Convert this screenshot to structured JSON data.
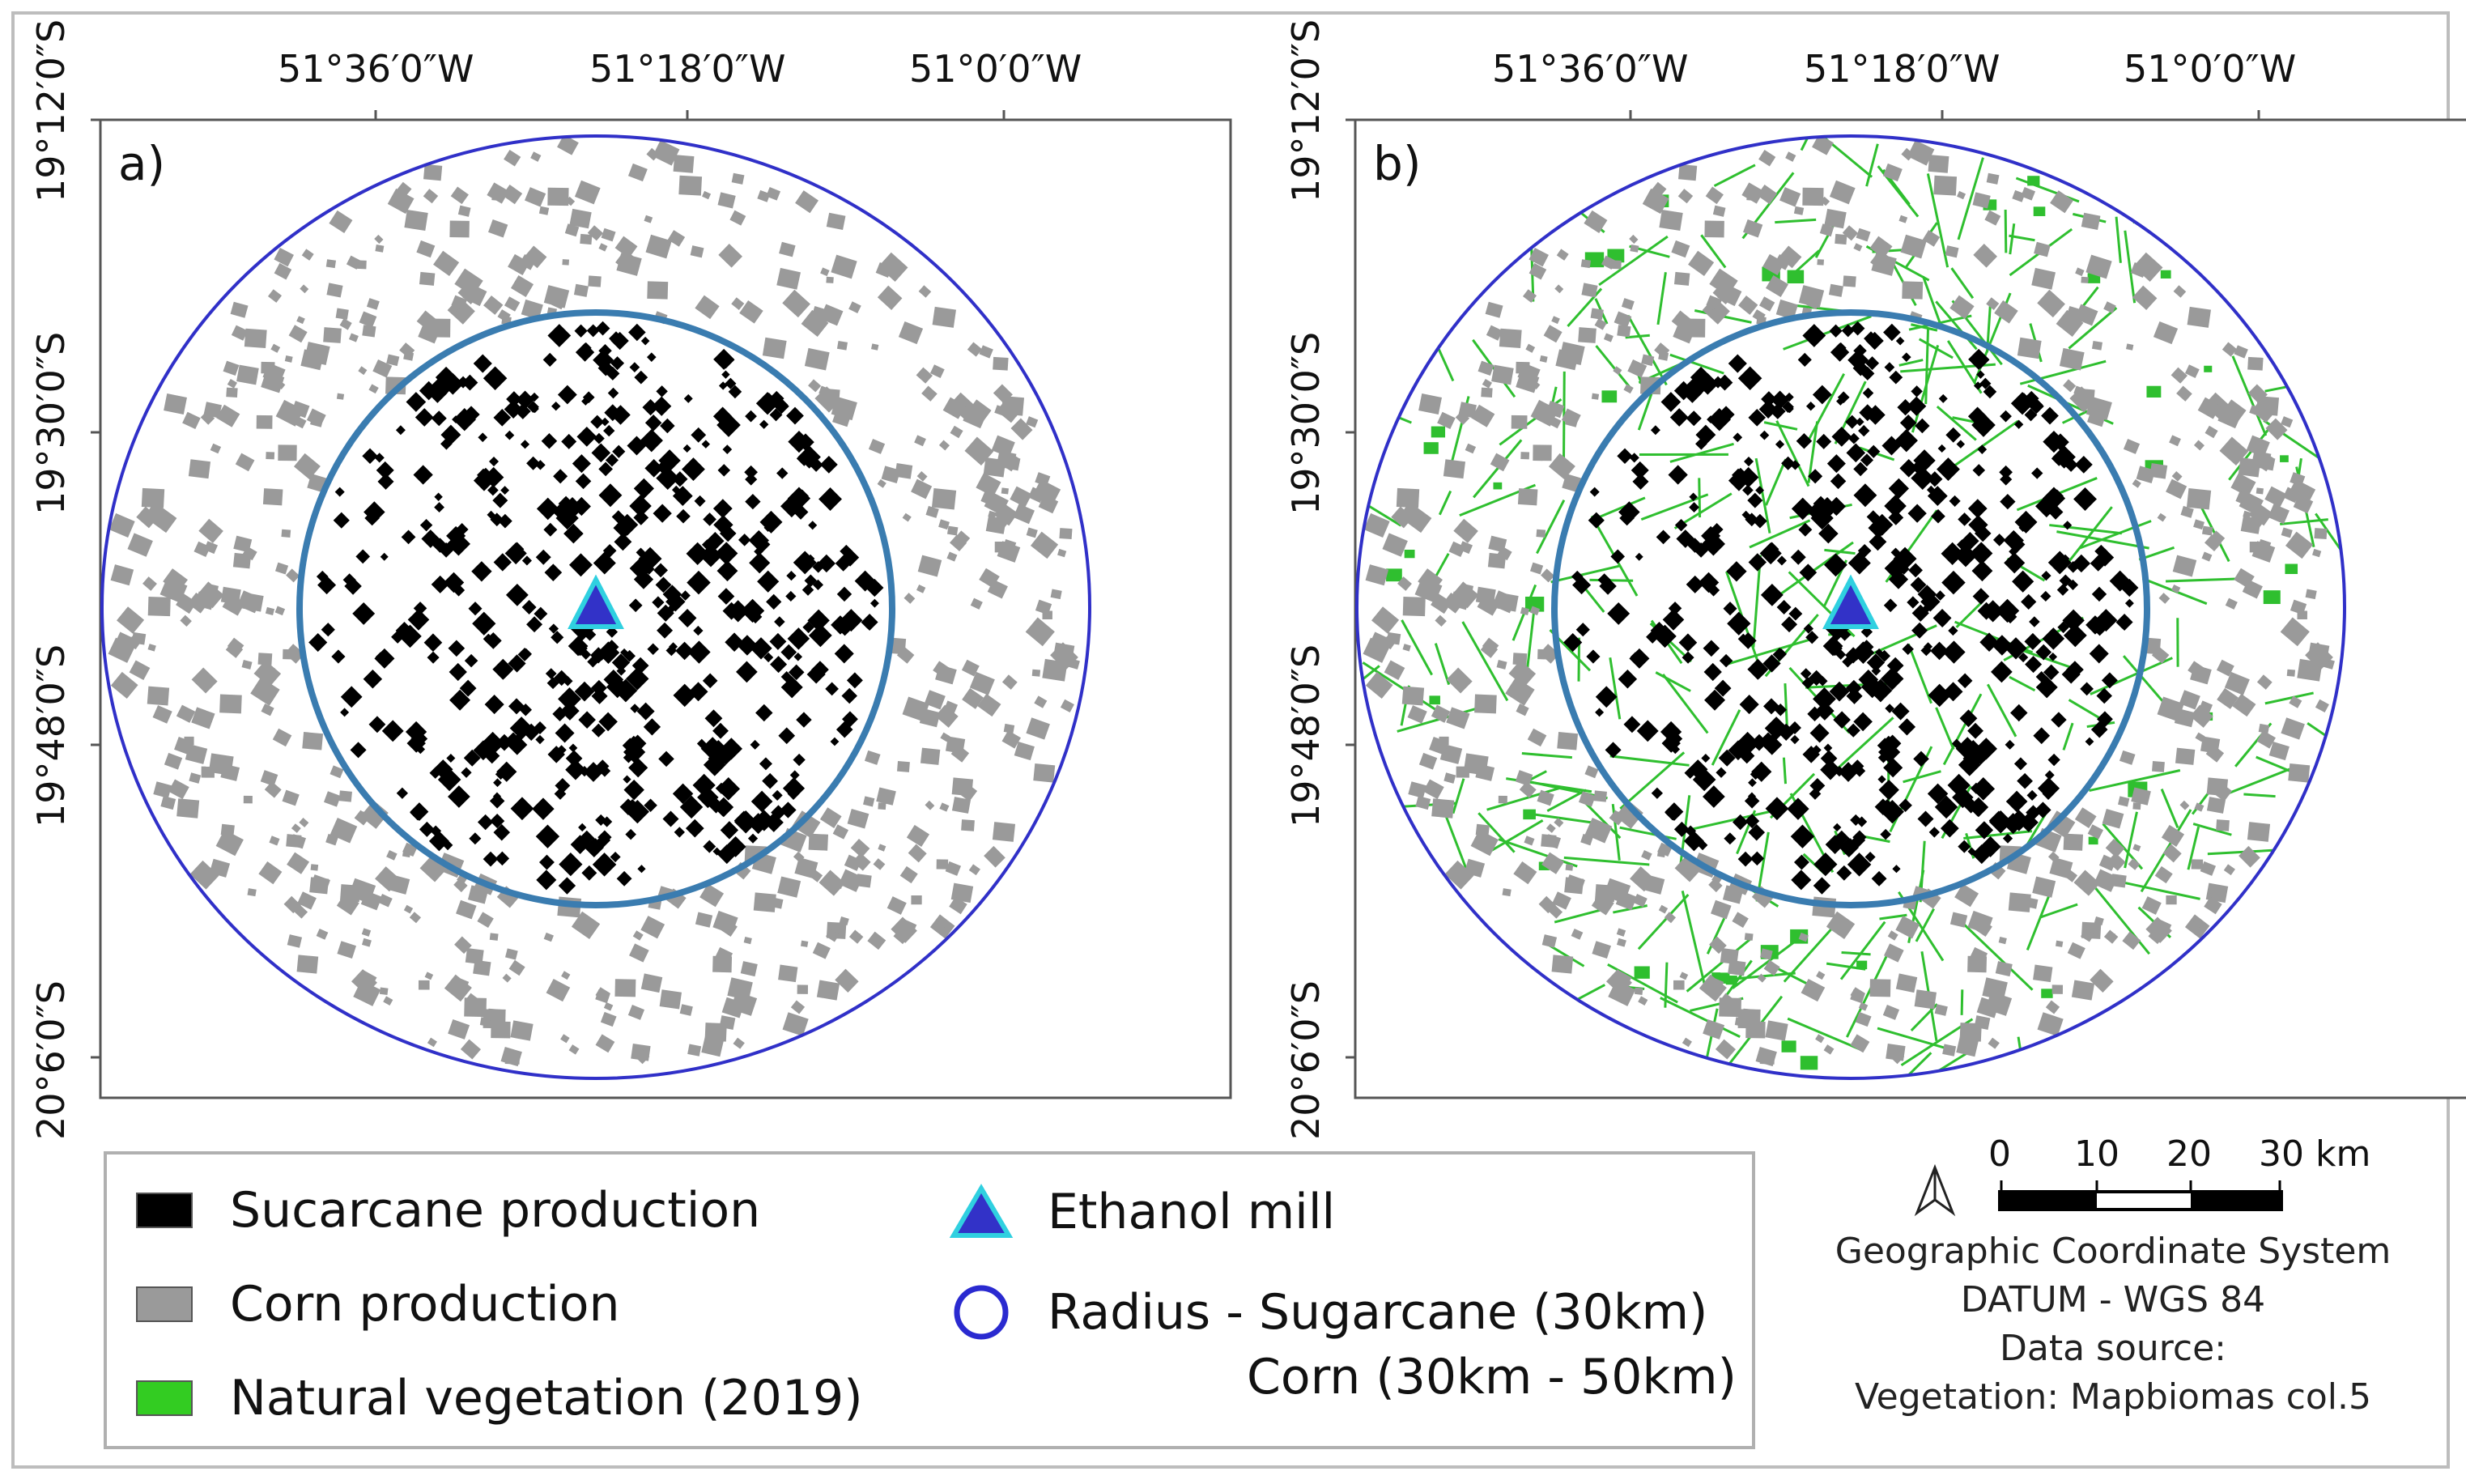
{
  "panels": [
    {
      "letter": "a)",
      "natural_vegetation": false
    },
    {
      "letter": "b)",
      "natural_vegetation": true
    }
  ],
  "axes": {
    "longitude_labels": [
      "51°36′0″W",
      "51°18′0″W",
      "51°0′0″W"
    ],
    "latitude_labels": [
      "19°12′0″S",
      "19°30′0″S",
      "19°48′0″S",
      "20°6′0″S"
    ]
  },
  "legend": {
    "sugarcane_label": "Sucarcane production",
    "corn_label": "Corn production",
    "vegetation_label": "Natural vegetation (2019)",
    "mill_label": "Ethanol mill",
    "radius_label_line1": "Radius - Sugarcane (30km)",
    "radius_label_line2": "Corn (30km - 50km)"
  },
  "scale_bar": {
    "ticks": [
      "0",
      "10",
      "20",
      "30 km"
    ]
  },
  "info": {
    "line1": "Geographic Coordinate System",
    "line2": "DATUM - WGS 84",
    "line3": "Data source:",
    "line4": "Vegetation: Mapbiomas col.5"
  },
  "colors": {
    "sugarcane": "#000000",
    "corn": "#9a9a9a",
    "vegetation": "#2fbf2f",
    "inner_circle": "#3a7cb0",
    "outer_circle": "#3030c8",
    "mill_fill": "#3232c8",
    "mill_stroke": "#30d0e0"
  }
}
